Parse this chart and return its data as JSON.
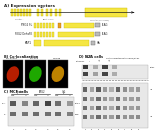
{
  "title_A": "A) Expression vectors",
  "title_B": "B) Co-localization",
  "title_C": "C) MCF cells",
  "title_D": "D) N2A cells",
  "bg_color": "#ffffff",
  "yellow": "#F5E642",
  "dark_yellow": "#C8B800",
  "orange": "#E8A020",
  "black": "#1a1a1a",
  "gray": "#666666",
  "light_gray": "#bbbbbb",
  "dark_gray": "#444444"
}
